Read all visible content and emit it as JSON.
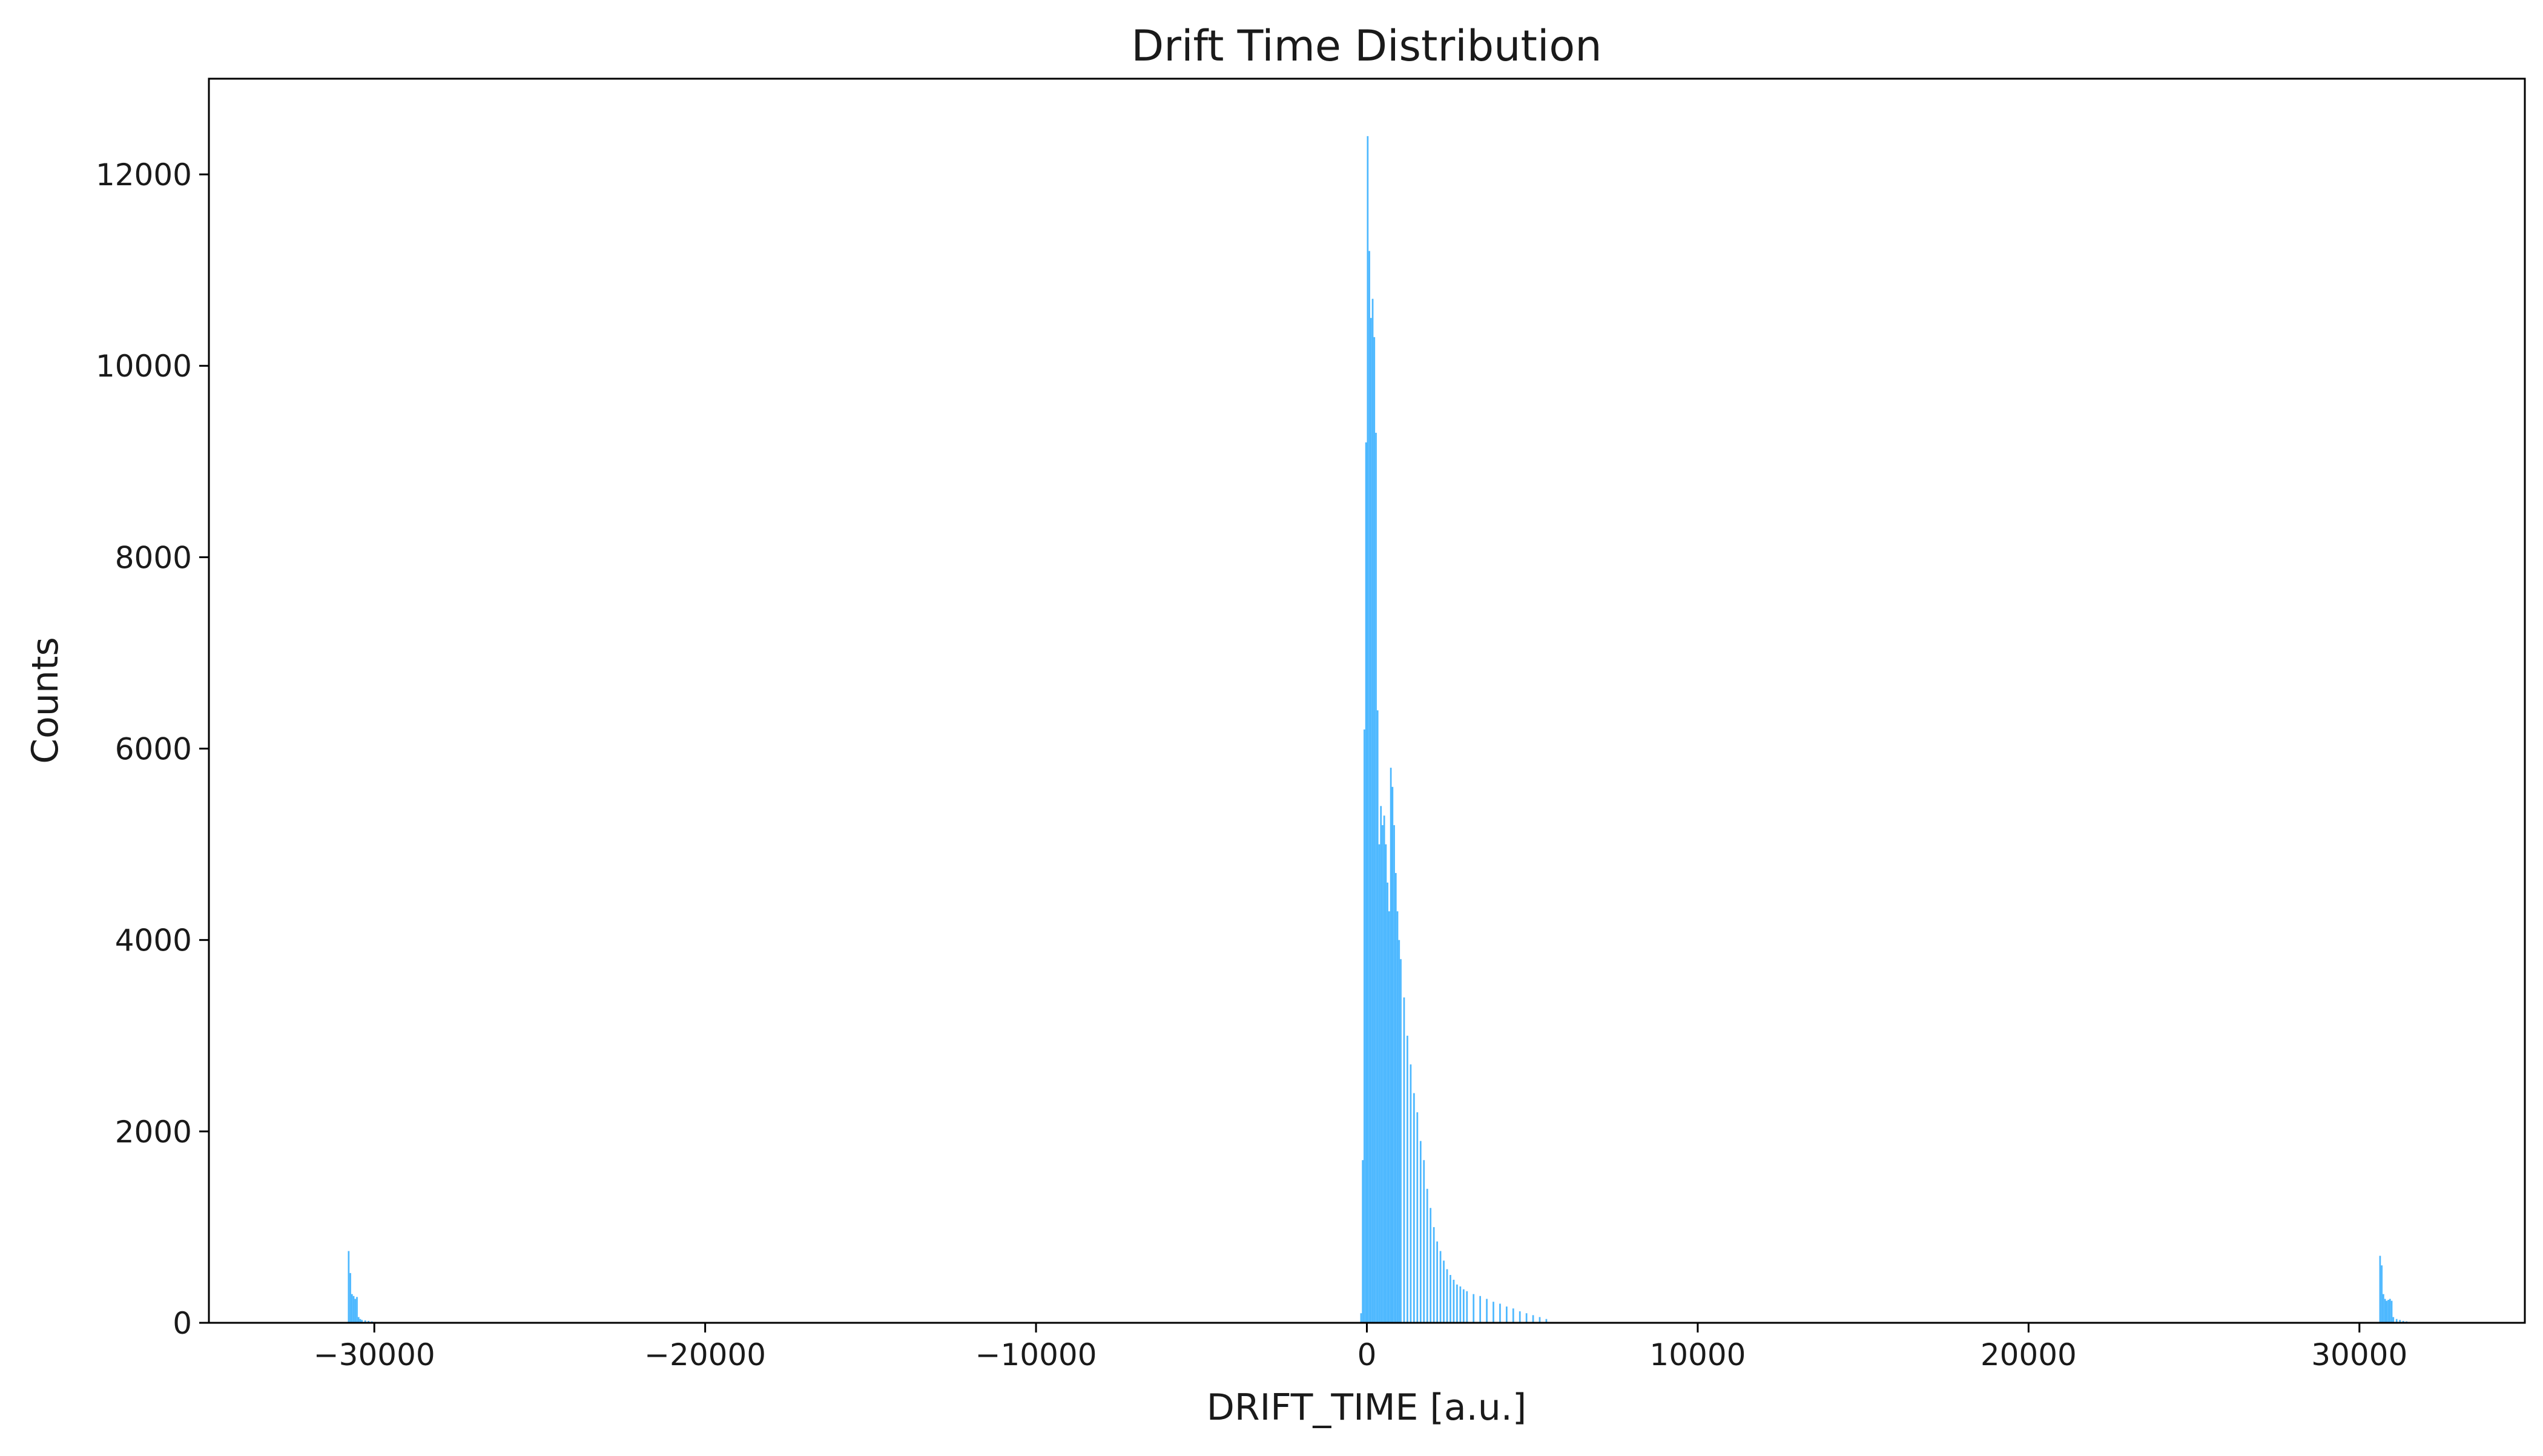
{
  "chart_data": {
    "type": "bar",
    "title": "Drift Time Distribution",
    "xlabel": "DRIFT_TIME [a.u.]",
    "ylabel": "Counts",
    "xlim": [
      -35000,
      35000
    ],
    "ylim": [
      0,
      13000
    ],
    "xticks": [
      -30000,
      -20000,
      -10000,
      0,
      10000,
      20000,
      30000
    ],
    "xtick_labels": [
      "−30000",
      "−20000",
      "−10000",
      "0",
      "10000",
      "20000",
      "30000"
    ],
    "yticks": [
      0,
      2000,
      4000,
      6000,
      8000,
      10000,
      12000
    ],
    "ytick_labels": [
      "0",
      "2000",
      "4000",
      "6000",
      "8000",
      "10000",
      "12000"
    ],
    "grid": false,
    "bar_color": "#4db8ff",
    "bins": {
      "x": [
        -30800,
        -30750,
        -30700,
        -30650,
        -30600,
        -30550,
        -30500,
        -30450,
        -30400,
        -30300,
        -30200,
        -30100,
        -30000,
        -29900,
        -29800,
        -200,
        -150,
        -100,
        -50,
        0,
        50,
        100,
        150,
        200,
        250,
        300,
        350,
        400,
        450,
        500,
        550,
        600,
        650,
        700,
        750,
        800,
        850,
        900,
        950,
        1000,
        1100,
        1200,
        1300,
        1400,
        1500,
        1600,
        1700,
        1800,
        1900,
        2000,
        2100,
        2200,
        2300,
        2400,
        2500,
        2600,
        2700,
        2800,
        2900,
        3000,
        3200,
        3400,
        3600,
        3800,
        4000,
        4200,
        4400,
        4600,
        4800,
        5000,
        5200,
        5400,
        30600,
        30650,
        30700,
        30750,
        30800,
        30850,
        30900,
        30950,
        31000,
        31100,
        31200,
        31300,
        31400,
        31500,
        31600
      ],
      "width": 50,
      "counts": [
        750,
        520,
        300,
        280,
        250,
        270,
        60,
        40,
        30,
        25,
        20,
        15,
        10,
        8,
        5,
        100,
        1700,
        6200,
        9200,
        12400,
        11200,
        10500,
        10700,
        10300,
        9300,
        6400,
        5000,
        5400,
        5200,
        5300,
        5000,
        4600,
        4300,
        5800,
        5600,
        5200,
        4700,
        4300,
        4000,
        3800,
        3400,
        3000,
        2700,
        2400,
        2200,
        1900,
        1700,
        1400,
        1200,
        1000,
        850,
        750,
        650,
        560,
        500,
        450,
        400,
        380,
        350,
        330,
        300,
        280,
        250,
        220,
        200,
        170,
        150,
        120,
        100,
        80,
        60,
        40,
        700,
        600,
        300,
        250,
        230,
        240,
        250,
        230,
        60,
        40,
        30,
        20,
        15,
        10,
        5
      ]
    }
  }
}
